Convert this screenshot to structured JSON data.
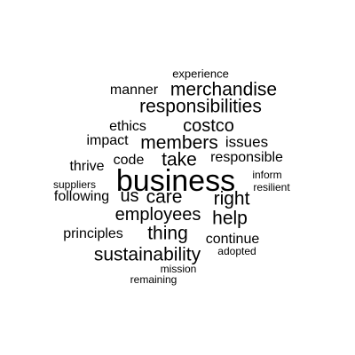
{
  "word_cloud": {
    "words": {
      "experience": "experience",
      "manner": "manner",
      "merchandise": "merchandise",
      "responsibilities": "responsibilities",
      "ethics": "ethics",
      "costco": "costco",
      "impact": "impact",
      "members": "members",
      "issues": "issues",
      "code": "code",
      "take": "take",
      "responsible": "responsible",
      "thrive": "thrive",
      "inform": "inform",
      "suppliers": "suppliers",
      "business": "business",
      "resilient": "resilient",
      "following": "following",
      "us": "us",
      "care": "care",
      "right": "right",
      "employees": "employees",
      "help": "help",
      "principles": "principles",
      "thing": "thing",
      "continue": "continue",
      "adopted": "adopted",
      "sustainability": "sustainability",
      "mission": "mission",
      "remaining": "remaining"
    },
    "colors": {
      "background": "#ffffff",
      "text": "#000000"
    }
  }
}
